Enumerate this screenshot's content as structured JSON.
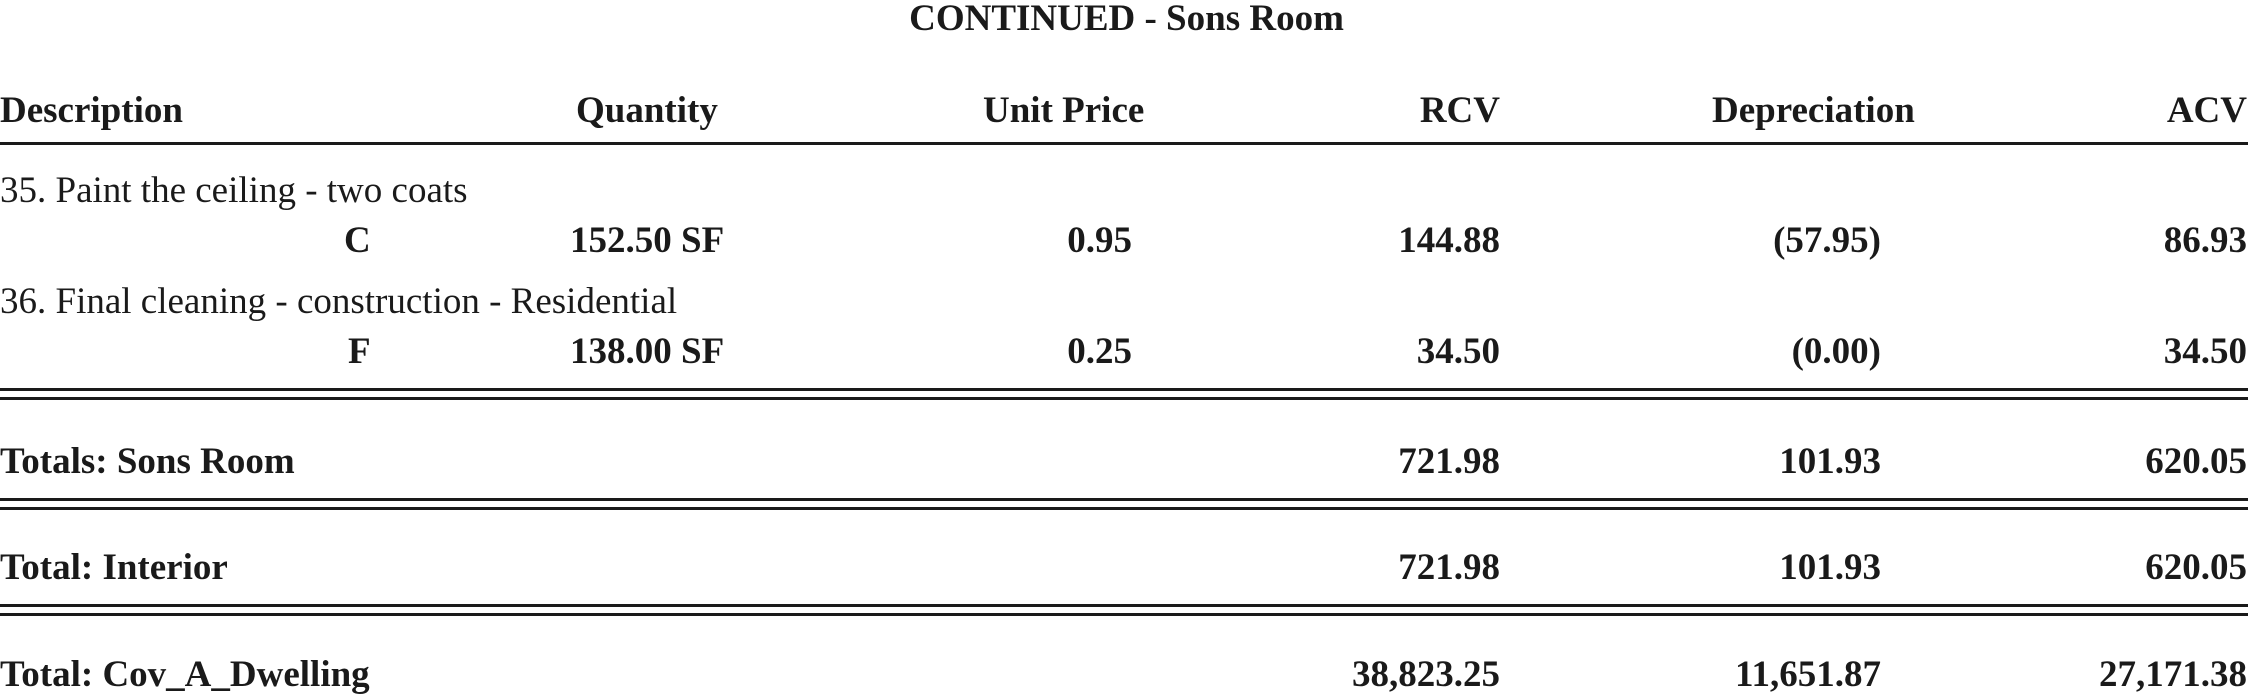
{
  "title": "CONTINUED - Sons Room",
  "headers": {
    "description": "Description",
    "quantity": "Quantity",
    "unit_price": "Unit Price",
    "rcv": "RCV",
    "depreciation": "Depreciation",
    "acv": "ACV"
  },
  "items": [
    {
      "description": "35.  Paint the ceiling - two coats",
      "code": "C",
      "quantity": "152.50 SF",
      "unit_price": "0.95",
      "rcv": "144.88",
      "depreciation": "(57.95)",
      "acv": "86.93"
    },
    {
      "description": "36.  Final cleaning - construction - Residential",
      "code": "F",
      "quantity": "138.00 SF",
      "unit_price": "0.25",
      "rcv": "34.50",
      "depreciation": "(0.00)",
      "acv": "34.50"
    }
  ],
  "totals": [
    {
      "label": "Totals:  Sons Room",
      "rcv": "721.98",
      "depreciation": "101.93",
      "acv": "620.05"
    },
    {
      "label": "Total: Interior",
      "rcv": "721.98",
      "depreciation": "101.93",
      "acv": "620.05"
    },
    {
      "label": "Total: Cov_A_Dwelling",
      "rcv": "38,823.25",
      "depreciation": "11,651.87",
      "acv": "27,171.38"
    }
  ]
}
